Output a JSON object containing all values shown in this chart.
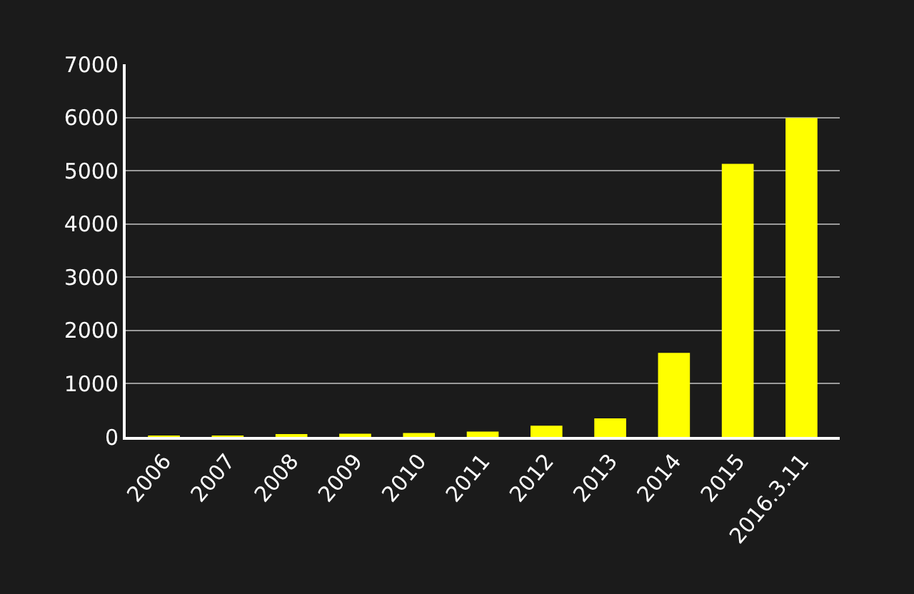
{
  "chart_data": {
    "type": "bar",
    "categories": [
      "2006",
      "2007",
      "2008",
      "2009",
      "2010",
      "2011",
      "2012",
      "2013",
      "2014",
      "2015",
      "2016.3.11"
    ],
    "values": [
      10,
      23,
      41,
      61,
      75,
      102,
      210,
      350,
      1580,
      5130,
      5990
    ],
    "color": "#ffff00",
    "ylim": [
      0,
      7000
    ],
    "yticks": [
      0,
      1000,
      2000,
      3000,
      4000,
      5000,
      6000,
      7000
    ],
    "grid": "y",
    "legend": false
  }
}
